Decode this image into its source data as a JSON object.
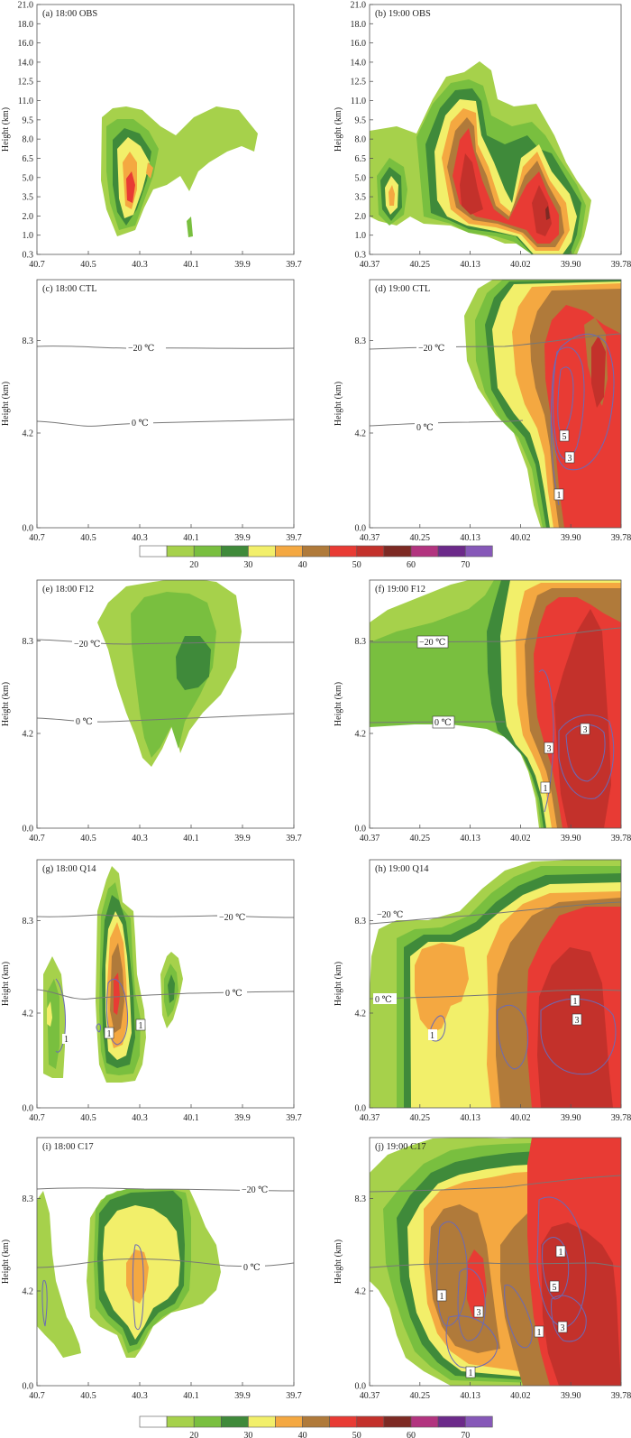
{
  "figure": {
    "y_label": "Height (km)",
    "colorbar": {
      "colors": [
        "#ffffff",
        "#a6d14b",
        "#79bf3f",
        "#3f8a3a",
        "#f2ef6a",
        "#f4a841",
        "#b07a3a",
        "#e83b34",
        "#c3312b",
        "#7d2a24",
        "#b2347f",
        "#6c2a8a",
        "#8658b8"
      ],
      "labels": [
        "20",
        "30",
        "40",
        "50",
        "60",
        "70"
      ]
    }
  },
  "panels": [
    {
      "id": "a",
      "title": "(a) 18:00 OBS",
      "x_ticks": [
        "40.7",
        "40.5",
        "40.3",
        "40.1",
        "39.9",
        "39.7"
      ],
      "y_ticks": [
        "21.0",
        "18.0",
        "16.0",
        "14.0",
        "12.5",
        "11.0",
        "9.5",
        "8.0",
        "6.5",
        "5.0",
        "3.5",
        "2.0",
        "1.0",
        "0.3"
      ],
      "isotherms": []
    },
    {
      "id": "b",
      "title": "(b) 19:00 OBS",
      "x_ticks": [
        "40.37",
        "40.25",
        "40.13",
        "40.02",
        "39.90",
        "39.78"
      ],
      "y_ticks": [
        "21.0",
        "18.0",
        "16.0",
        "14.0",
        "12.5",
        "11.0",
        "9.5",
        "8.0",
        "6.5",
        "5.0",
        "3.5",
        "2.0",
        "1.0",
        "0.3"
      ],
      "isotherms": []
    },
    {
      "id": "c",
      "title": "(c) 18:00 CTL",
      "x_ticks": [
        "40.7",
        "40.5",
        "40.3",
        "40.1",
        "39.9",
        "39.7"
      ],
      "y_ticks": [
        "8.3",
        "4.2",
        "0.0"
      ],
      "isotherms": [
        "−20 ℃",
        "0 ℃"
      ]
    },
    {
      "id": "d",
      "title": "(d) 19:00 CTL",
      "x_ticks": [
        "40.37",
        "40.25",
        "40.13",
        "40.02",
        "39.90",
        "39.78"
      ],
      "y_ticks": [
        "8.3",
        "4.2",
        "0.0"
      ],
      "isotherms": [
        "−20 ℃",
        "0 ℃"
      ],
      "contour_labels": [
        "5",
        "3",
        "1"
      ]
    },
    {
      "id": "e",
      "title": "(e) 18:00 F12",
      "x_ticks": [
        "40.7",
        "40.5",
        "40.3",
        "40.1",
        "39.9",
        "39.7"
      ],
      "y_ticks": [
        "8.3",
        "4.2",
        "0.0"
      ],
      "isotherms": [
        "−20 ℃",
        "0 ℃"
      ]
    },
    {
      "id": "f",
      "title": "(f) 19:00 F12",
      "x_ticks": [
        "40.37",
        "40.25",
        "40.13",
        "40.02",
        "39.90",
        "39.78"
      ],
      "y_ticks": [
        "8.3",
        "4.2",
        "0.0"
      ],
      "isotherms": [
        "−20 ℃",
        "0 ℃"
      ],
      "contour_labels": [
        "3",
        "3",
        "1"
      ]
    },
    {
      "id": "g",
      "title": "(g) 18:00 Q14",
      "x_ticks": [
        "40.7",
        "40.5",
        "40.3",
        "40.1",
        "39.9",
        "39.7"
      ],
      "y_ticks": [
        "8.3",
        "4.2",
        "0.0"
      ],
      "isotherms": [
        "−20 ℃",
        "0 ℃"
      ],
      "contour_labels": [
        "1",
        "1",
        "1"
      ]
    },
    {
      "id": "h",
      "title": "(h) 19:00 Q14",
      "x_ticks": [
        "40.37",
        "40.25",
        "40.13",
        "40.02",
        "39.90",
        "39.78"
      ],
      "y_ticks": [
        "8.3",
        "4.2",
        "0.0"
      ],
      "isotherms": [
        "−20 ℃",
        "0 ℃"
      ],
      "contour_labels": [
        "1",
        "3",
        "1"
      ]
    },
    {
      "id": "i",
      "title": "(i) 18:00 C17",
      "x_ticks": [
        "40.7",
        "40.5",
        "40.3",
        "40.1",
        "39.9",
        "39.7"
      ],
      "y_ticks": [
        "8.3",
        "4.2",
        "0.0"
      ],
      "isotherms": [
        "−20 ℃",
        "0 ℃"
      ]
    },
    {
      "id": "j",
      "title": "(j) 19:00 C17",
      "x_ticks": [
        "40.37",
        "40.25",
        "40.13",
        "40.02",
        "39.90",
        "39.78"
      ],
      "y_ticks": [
        "8.3",
        "4.2",
        "0.0"
      ],
      "isotherms": [],
      "contour_labels": [
        "1",
        "5",
        "1",
        "3",
        "1",
        "3",
        "1"
      ]
    }
  ],
  "chart_data": {
    "type": "heatmap",
    "panels": [
      "(a) 18:00 OBS",
      "(b) 19:00 OBS",
      "(c) 18:00 CTL",
      "(d) 19:00 CTL",
      "(e) 18:00 F12",
      "(f) 19:00 F12",
      "(g) 18:00 Q14",
      "(h) 19:00 Q14",
      "(i) 18:00 C17",
      "(j) 19:00 C17"
    ],
    "ylabel": "Height (km)",
    "xlim_18": [
      40.7,
      39.7
    ],
    "xlim_19": [
      40.37,
      39.78
    ],
    "colorbar_ticks": [
      20,
      30,
      40,
      50,
      60,
      70
    ],
    "isotherm_labels": [
      "−20 ℃",
      "0 ℃"
    ],
    "isotherm_heights_km": {
      "−20 ℃": 7.3,
      "0 ℃": 4.1
    }
  }
}
